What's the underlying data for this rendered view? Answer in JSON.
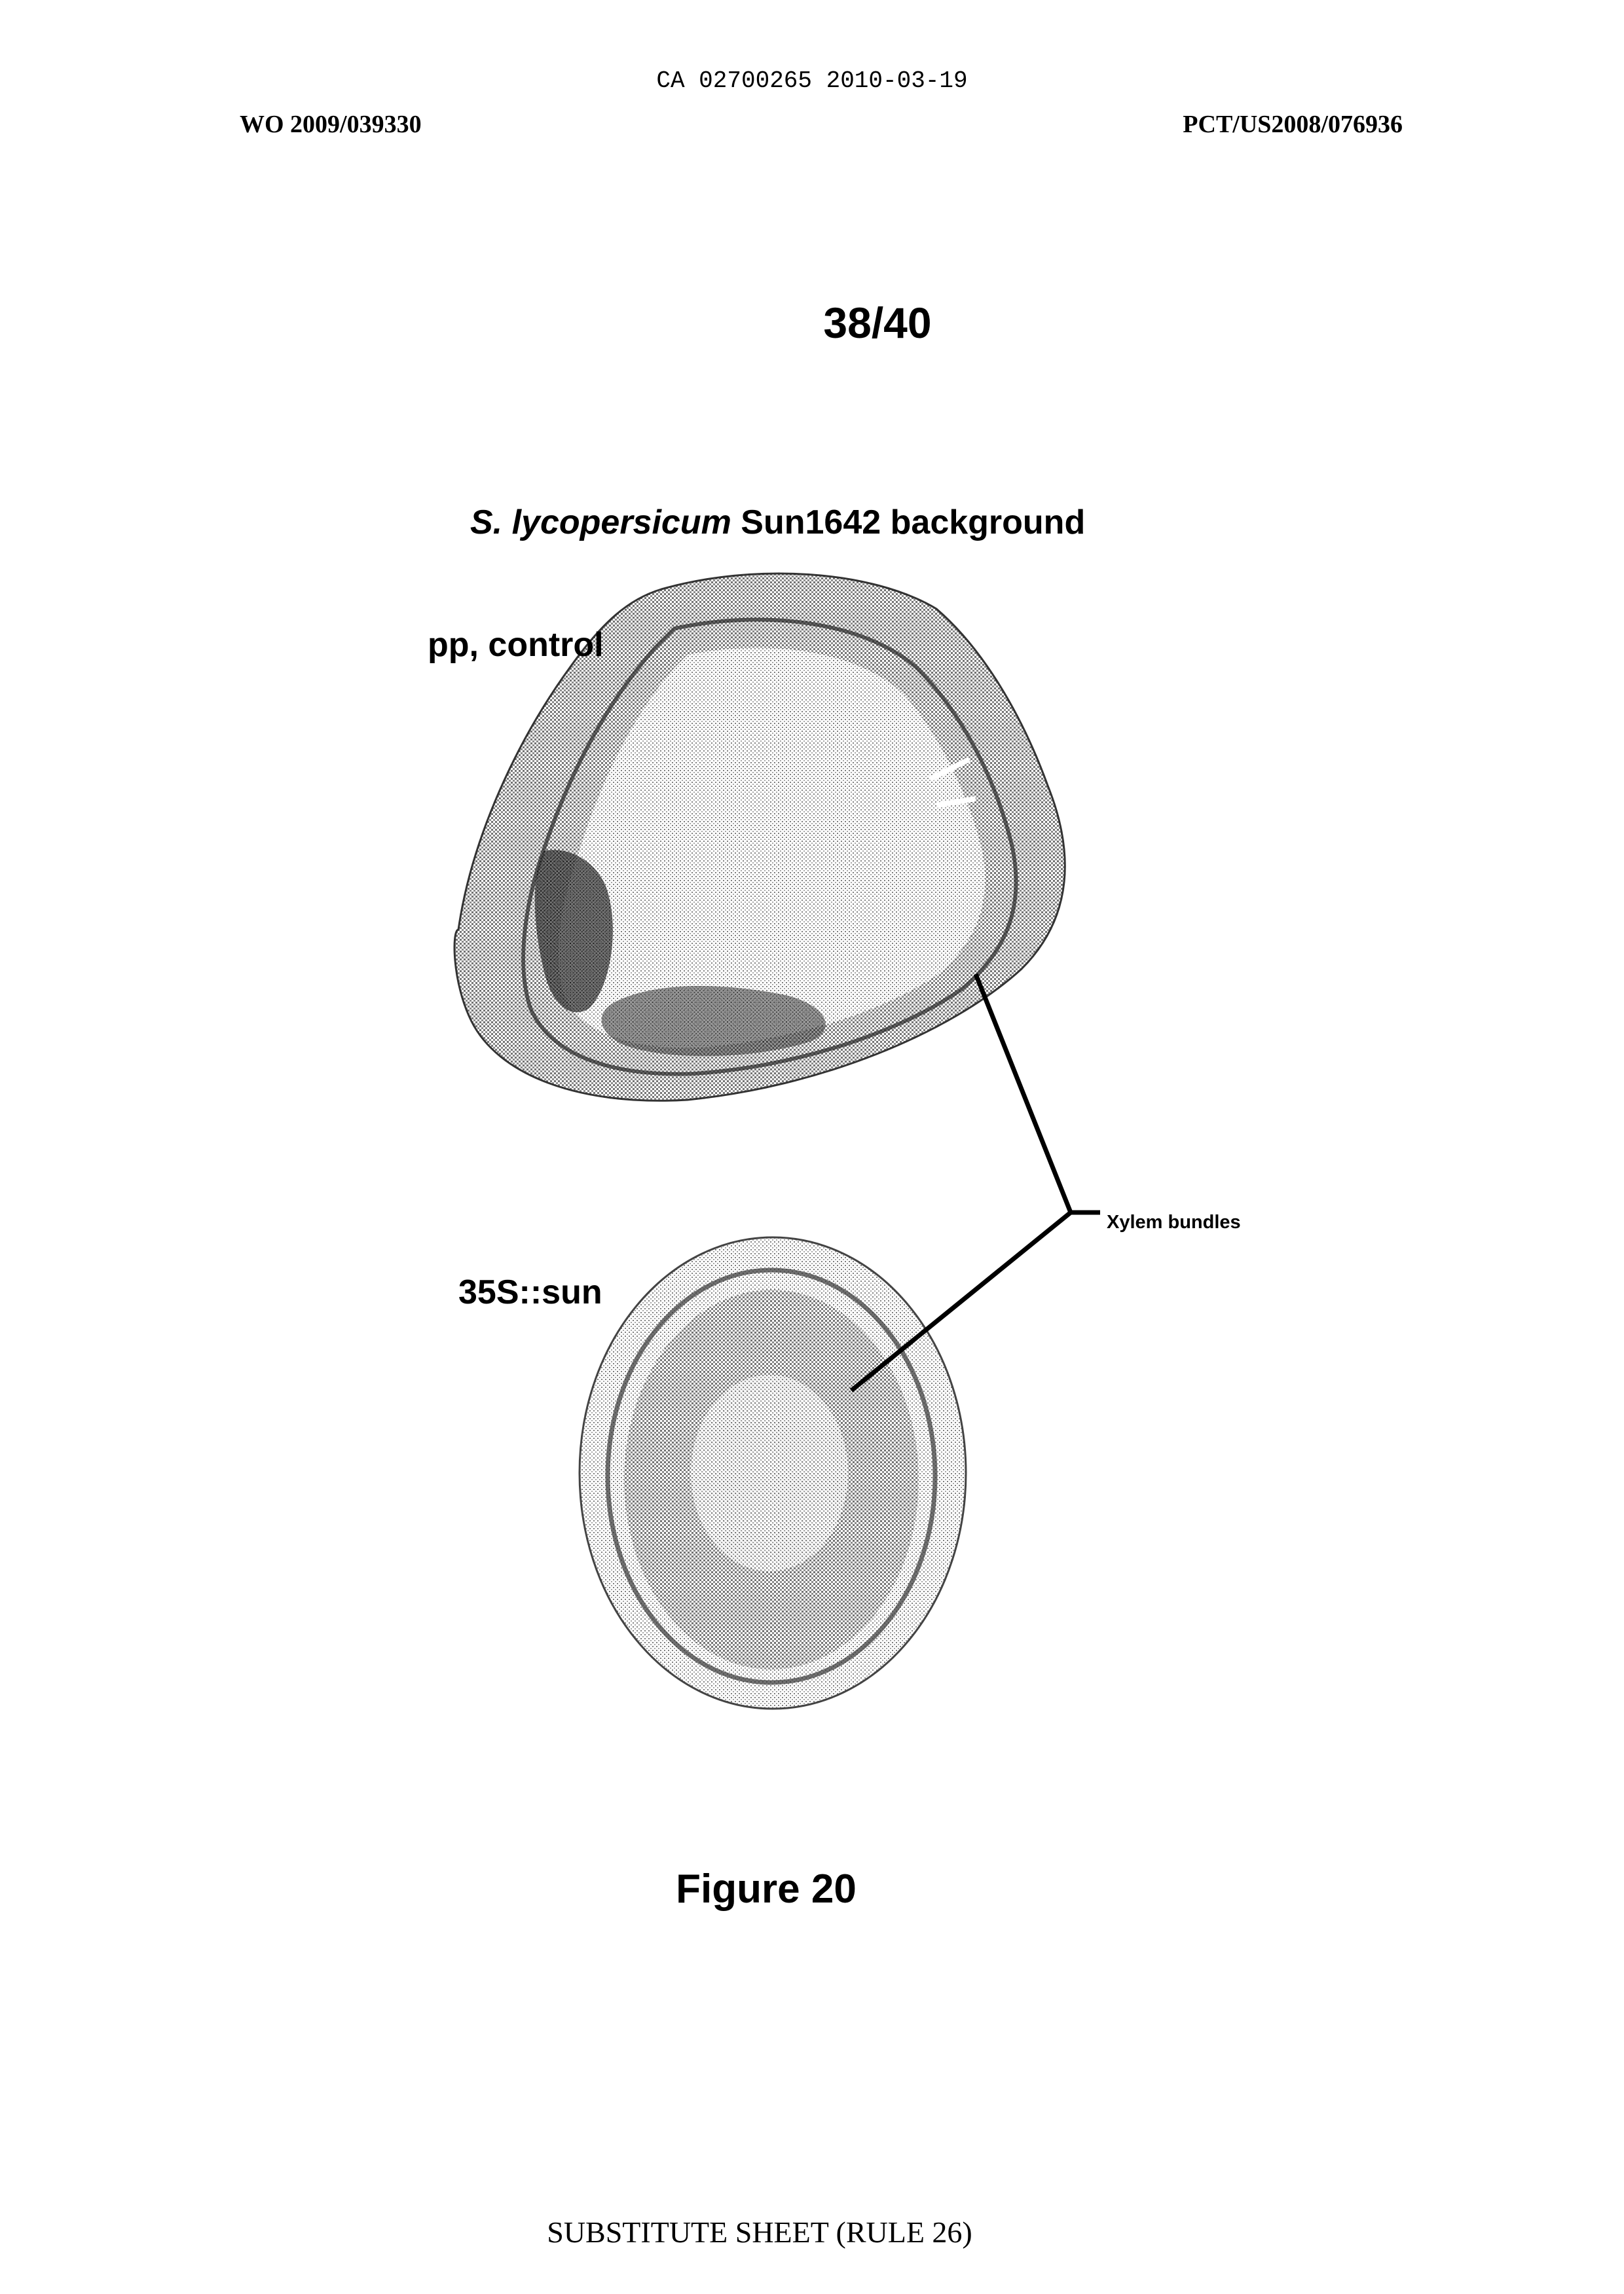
{
  "header": {
    "ca_number": "CA 02700265 2010-03-19",
    "wo_number": "WO 2009/039330",
    "pct_number": "PCT/US2008/076936"
  },
  "page_number": "38/40",
  "figure": {
    "title_italic": "S. lycopersicum",
    "title_rest": " Sun1642 background",
    "label_control": "pp, control",
    "label_transgenic": "35S::sun",
    "label_xylem": "Xylem bundles",
    "caption": "Figure 20"
  },
  "footer": "SUBSTITUTE SHEET (RULE 26)"
}
